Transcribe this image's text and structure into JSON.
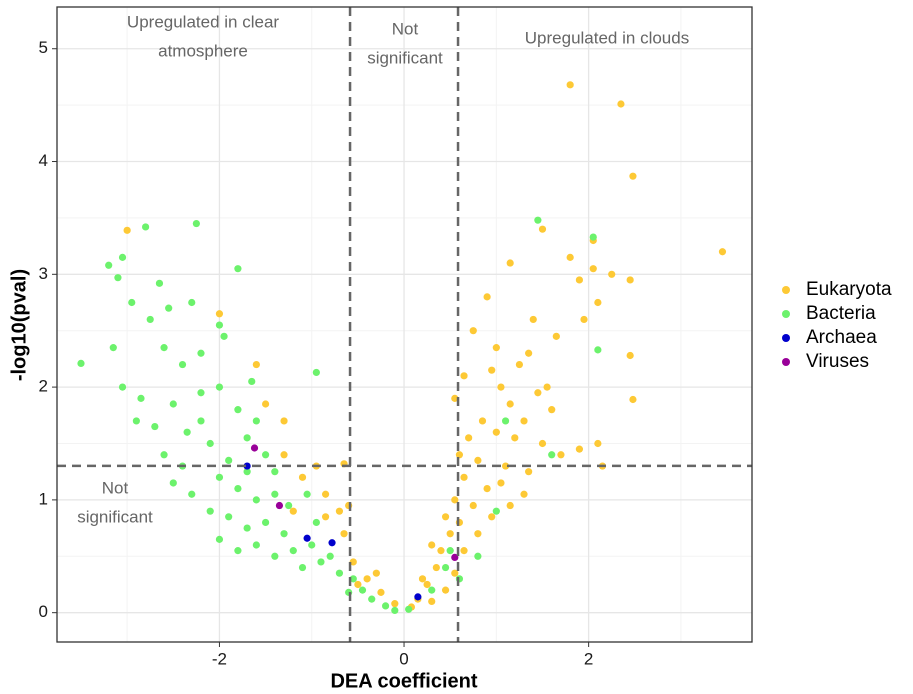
{
  "chart_data": {
    "type": "scatter",
    "x_label": "DEA coefficient",
    "y_label": "-log10(pval)",
    "xlim": [
      -3.76,
      3.77
    ],
    "ylim": [
      -0.26,
      5.37
    ],
    "xticks": [
      -2,
      0,
      2
    ],
    "yticks": [
      0,
      1,
      2,
      3,
      4,
      5
    ],
    "xminor": [
      -3,
      -1,
      1,
      3
    ],
    "yminor": [
      0.5,
      1.5,
      2.5,
      3.5,
      4.5
    ],
    "grid": true,
    "vlines": [
      -0.585,
      0.585
    ],
    "hline": 1.301,
    "legend": "right",
    "annotations": [
      {
        "lines": [
          "Upregulated in clear",
          "atmosphere"
        ]
      },
      {
        "lines": [
          "Not",
          "significant"
        ]
      },
      {
        "lines": [
          "Upregulated in clouds"
        ]
      },
      {
        "lines": [
          "Not",
          "significant"
        ]
      }
    ],
    "series": [
      {
        "name": "Eukaryota",
        "color": "#FDC935",
        "x": [
          1.8,
          2.35,
          2.48,
          3.45,
          1.5,
          1.15,
          1.8,
          2.05,
          2.25,
          2.45,
          2.45,
          2.48,
          -3.0,
          1.9,
          2.1,
          1.95,
          1.65,
          1.35,
          1.25,
          0.9,
          0.75,
          0.65,
          0.95,
          1.05,
          1.15,
          1.45,
          1.6,
          1.3,
          0.85,
          1.0,
          1.2,
          1.5,
          1.7,
          2.1,
          2.15,
          1.9,
          0.7,
          0.6,
          0.8,
          1.1,
          1.35,
          0.65,
          0.9,
          1.05,
          0.75,
          0.55,
          0.95,
          0.6,
          0.5,
          0.8,
          0.4,
          0.65,
          0.35,
          0.55,
          0.25,
          0.45,
          0.15,
          0.3,
          0.08,
          0.2,
          1.15,
          1.3,
          0.45,
          0.3,
          -0.1,
          -0.25,
          -0.4,
          -0.55,
          -0.65,
          -0.7,
          -0.85,
          -0.65,
          -0.6,
          -0.95,
          -1.3,
          -1.3,
          -1.5,
          -1.6,
          -2.0,
          -0.85,
          -0.5,
          -0.3,
          -1.1,
          -1.2,
          1.55,
          1.4,
          1.0,
          0.55,
          2.05
        ],
        "values": [
          4.68,
          4.51,
          3.87,
          3.2,
          3.4,
          3.1,
          3.15,
          3.05,
          3.0,
          2.95,
          2.28,
          1.89,
          3.39,
          2.95,
          2.75,
          2.6,
          2.45,
          2.3,
          2.2,
          2.8,
          2.5,
          2.1,
          2.15,
          2.0,
          1.85,
          1.95,
          1.8,
          1.7,
          1.7,
          1.6,
          1.55,
          1.5,
          1.4,
          1.5,
          1.3,
          1.45,
          1.55,
          1.4,
          1.35,
          1.3,
          1.25,
          1.2,
          1.1,
          1.15,
          0.95,
          1.0,
          0.85,
          0.8,
          0.7,
          0.7,
          0.55,
          0.55,
          0.4,
          0.35,
          0.25,
          0.2,
          0.12,
          0.1,
          0.05,
          0.3,
          0.95,
          1.05,
          0.85,
          0.6,
          0.08,
          0.18,
          0.3,
          0.45,
          0.7,
          0.9,
          1.05,
          1.32,
          0.95,
          1.3,
          1.4,
          1.7,
          1.85,
          2.2,
          2.65,
          0.85,
          0.25,
          0.35,
          1.2,
          0.9,
          2.0,
          2.6,
          2.35,
          1.9,
          3.3
        ]
      },
      {
        "name": "Bacteria",
        "color": "#6CF26C",
        "x": [
          -2.25,
          -3.2,
          -3.5,
          -3.1,
          -2.95,
          -3.05,
          -2.8,
          -1.8,
          -2.65,
          -2.55,
          -2.3,
          -2.0,
          -1.95,
          -2.75,
          -3.15,
          -3.05,
          -2.85,
          -2.6,
          -2.4,
          -2.2,
          -2.9,
          -2.7,
          -2.5,
          -2.2,
          -2.0,
          -1.8,
          -1.6,
          -2.35,
          -2.6,
          -2.4,
          -2.1,
          -1.9,
          -1.7,
          -1.5,
          -1.4,
          -2.0,
          -2.3,
          -2.5,
          -1.8,
          -1.6,
          -1.4,
          -2.1,
          -1.9,
          -1.7,
          -1.5,
          -1.3,
          -1.2,
          -1.0,
          -0.9,
          -0.8,
          -1.1,
          -0.7,
          -0.55,
          -0.45,
          -0.35,
          -0.2,
          -0.6,
          -1.6,
          -1.4,
          -2.0,
          -1.8,
          -0.95,
          -1.05,
          -0.95,
          1.45,
          2.05,
          1.1,
          1.6,
          2.1,
          1.0,
          0.8,
          0.6,
          0.45,
          0.5,
          0.3,
          -0.1,
          0.05,
          -1.25,
          -2.2,
          -1.65,
          -1.7
        ],
        "values": [
          3.45,
          3.08,
          2.21,
          2.97,
          2.75,
          3.15,
          3.42,
          3.05,
          2.92,
          2.7,
          2.75,
          2.55,
          2.45,
          2.6,
          2.35,
          2.0,
          1.9,
          2.35,
          2.2,
          2.3,
          1.7,
          1.65,
          1.85,
          1.95,
          2.0,
          1.8,
          1.7,
          1.6,
          1.4,
          1.3,
          1.5,
          1.35,
          1.55,
          1.4,
          1.25,
          1.2,
          1.05,
          1.15,
          1.1,
          1.0,
          1.05,
          0.9,
          0.85,
          0.75,
          0.8,
          0.7,
          0.55,
          0.6,
          0.45,
          0.5,
          0.4,
          0.35,
          0.3,
          0.2,
          0.12,
          0.06,
          0.18,
          0.6,
          0.5,
          0.65,
          0.55,
          2.13,
          1.05,
          0.8,
          3.48,
          3.33,
          1.7,
          1.4,
          2.33,
          0.9,
          0.5,
          0.3,
          0.4,
          0.55,
          0.2,
          0.02,
          0.03,
          0.95,
          1.7,
          2.05,
          1.25
        ]
      },
      {
        "name": "Archaea",
        "color": "#0000CC",
        "x": [
          -1.7,
          -1.05,
          -0.78,
          0.15
        ],
        "values": [
          1.3,
          0.66,
          0.62,
          0.14
        ]
      },
      {
        "name": "Viruses",
        "color": "#990099",
        "x": [
          -1.62,
          -1.35,
          0.55
        ],
        "values": [
          1.46,
          0.95,
          0.49
        ]
      }
    ]
  }
}
